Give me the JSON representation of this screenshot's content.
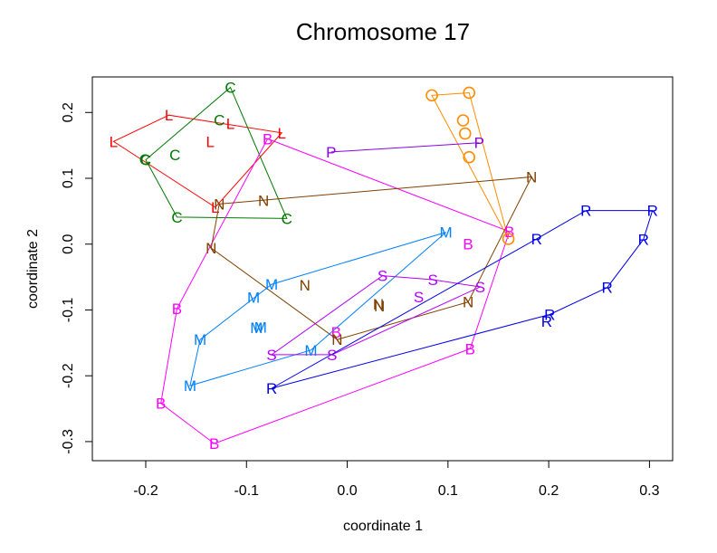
{
  "chart_data": {
    "type": "scatter",
    "title": "Chromosome 17",
    "xlabel": "coordinate 1",
    "ylabel": "coordinate 2",
    "xlim": [
      -0.253,
      0.323
    ],
    "ylim": [
      -0.329,
      0.254
    ],
    "x_ticks": [
      -0.2,
      -0.1,
      0.0,
      0.1,
      0.2,
      0.3
    ],
    "x_tick_labels": [
      "-0.2",
      "-0.1",
      "0.0",
      "0.1",
      "0.2",
      "0.3"
    ],
    "y_ticks": [
      -0.3,
      -0.2,
      -0.1,
      0.0,
      0.1,
      0.2
    ],
    "y_tick_labels": [
      "-0.3",
      "-0.2",
      "-0.1",
      "0.0",
      "0.1",
      "0.2"
    ],
    "grid": false,
    "legend": "none",
    "series": [
      {
        "name": "L",
        "color": "#ff0000",
        "points": [
          [
            -0.232,
            0.156
          ],
          [
            -0.177,
            0.196
          ],
          [
            -0.136,
            0.156
          ],
          [
            -0.116,
            0.183
          ],
          [
            -0.065,
            0.169
          ],
          [
            -0.131,
            0.056
          ]
        ],
        "hull": [
          0,
          1,
          4,
          5
        ]
      },
      {
        "name": "C",
        "color": "#007800",
        "points": [
          [
            -0.116,
            0.238
          ],
          [
            -0.127,
            0.189
          ],
          [
            -0.171,
            0.136
          ],
          [
            -0.2,
            0.128
          ],
          [
            -0.201,
            0.129
          ],
          [
            -0.169,
            0.041
          ],
          [
            -0.06,
            0.039
          ]
        ],
        "hull": [
          0,
          6,
          5,
          3
        ]
      },
      {
        "name": "B",
        "color": "#ff00ff",
        "points": [
          [
            -0.079,
            0.16
          ],
          [
            0.161,
            0.019
          ],
          [
            0.12,
            0.0
          ],
          [
            -0.169,
            -0.098
          ],
          [
            -0.011,
            -0.134
          ],
          [
            0.122,
            -0.159
          ],
          [
            -0.185,
            -0.242
          ],
          [
            -0.132,
            -0.303
          ]
        ],
        "hull": [
          0,
          1,
          5,
          7,
          6,
          3
        ]
      },
      {
        "name": "O",
        "color": "#ff8c00",
        "points": [
          [
            0.084,
            0.226
          ],
          [
            0.121,
            0.23
          ],
          [
            0.115,
            0.188
          ],
          [
            0.117,
            0.168
          ],
          [
            0.121,
            0.132
          ],
          [
            0.16,
            0.008
          ]
        ],
        "hull": [
          0,
          1,
          5
        ]
      },
      {
        "name": "P",
        "color": "#8a00e6",
        "points": [
          [
            -0.016,
            0.14
          ],
          [
            0.131,
            0.154
          ]
        ],
        "hull": [
          0,
          1
        ]
      },
      {
        "name": "N",
        "color": "#804000",
        "points": [
          [
            0.183,
            0.102
          ],
          [
            -0.127,
            0.061
          ],
          [
            -0.083,
            0.066
          ],
          [
            -0.135,
            -0.006
          ],
          [
            -0.042,
            -0.062
          ],
          [
            0.032,
            -0.094
          ],
          [
            0.031,
            -0.091
          ],
          [
            0.12,
            -0.088
          ],
          [
            -0.01,
            -0.145
          ]
        ],
        "hull": [
          0,
          7,
          8,
          3,
          1
        ]
      },
      {
        "name": "M",
        "color": "#0080ff",
        "points": [
          [
            0.098,
            0.018
          ],
          [
            -0.075,
            -0.061
          ],
          [
            -0.093,
            -0.081
          ],
          [
            -0.146,
            -0.145
          ],
          [
            -0.09,
            -0.127
          ],
          [
            -0.086,
            -0.126
          ],
          [
            -0.036,
            -0.161
          ],
          [
            -0.156,
            -0.215
          ]
        ],
        "hull": [
          0,
          6,
          7,
          3,
          1
        ]
      },
      {
        "name": "S",
        "color": "#b400ff",
        "points": [
          [
            0.035,
            -0.048
          ],
          [
            0.085,
            -0.054
          ],
          [
            0.132,
            -0.065
          ],
          [
            0.071,
            -0.08
          ],
          [
            -0.075,
            -0.168
          ],
          [
            -0.015,
            -0.168
          ]
        ],
        "hull": [
          0,
          1,
          2,
          5,
          4
        ]
      },
      {
        "name": "R",
        "color": "#0000e6",
        "points": [
          [
            0.237,
            0.051
          ],
          [
            0.303,
            0.051
          ],
          [
            0.294,
            0.007
          ],
          [
            0.188,
            0.008
          ],
          [
            0.258,
            -0.066
          ],
          [
            0.201,
            -0.107
          ],
          [
            0.198,
            -0.117
          ],
          [
            -0.075,
            -0.219
          ]
        ],
        "hull": [
          0,
          1,
          2,
          4,
          5,
          7,
          3
        ]
      }
    ]
  }
}
